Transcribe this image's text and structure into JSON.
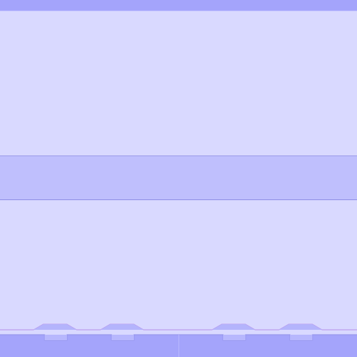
{
  "window": {
    "title": "",
    "top_bar_color": "#a4a4fb",
    "panel_color": "#d9d9ff",
    "band_color": "#bfbffd"
  },
  "dock": {
    "left_group": {
      "tabs": [
        "",
        ""
      ]
    },
    "right_group": {
      "tabs": [
        "",
        ""
      ]
    },
    "tab_color": "#a4a4fb",
    "tab_outline_color": "#b58fe8"
  }
}
